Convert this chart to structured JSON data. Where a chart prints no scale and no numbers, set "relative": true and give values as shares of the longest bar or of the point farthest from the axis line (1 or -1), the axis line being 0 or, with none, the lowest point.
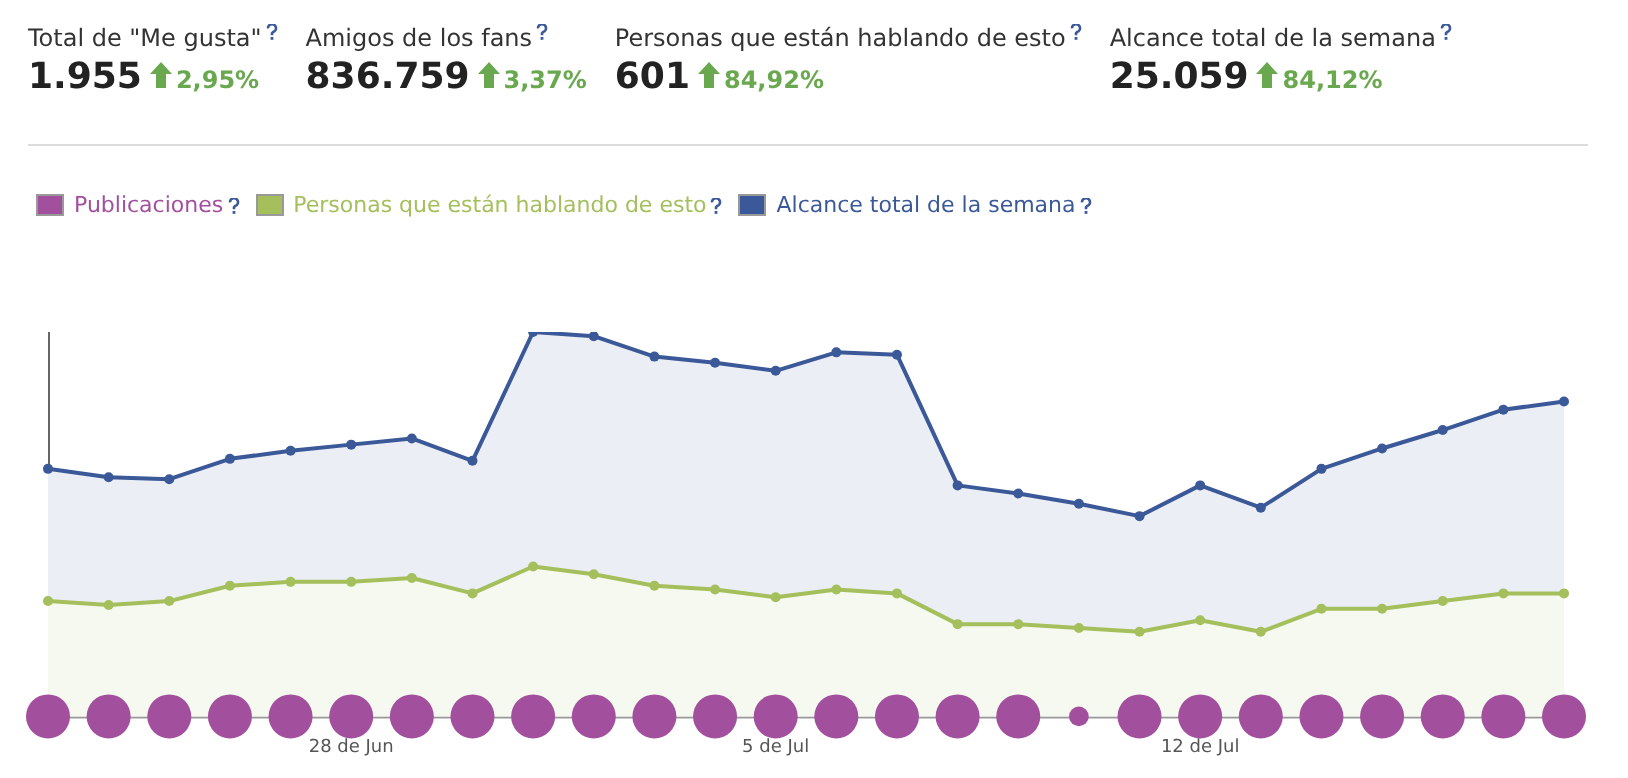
{
  "chart_data": {
    "type": "area",
    "relative": true,
    "legend": "top left",
    "marker": "circle",
    "grid": false,
    "annotations": [
      "Total de \"Me gusta\"",
      "1.955",
      "2,95%",
      "Amigos de los fans",
      "836.759",
      "3,37%",
      "Personas que están hablando de esto",
      "601",
      "84,92%",
      "Alcance total de la semana",
      "25.059",
      "84,12%"
    ],
    "categories": [
      null,
      null,
      null,
      null,
      null,
      "28 de Jun",
      null,
      null,
      null,
      null,
      null,
      null,
      "5 de Jul",
      null,
      null,
      null,
      null,
      null,
      null,
      "12 de Jul",
      null,
      null,
      null,
      null,
      null,
      null
    ],
    "series": [
      {
        "name": "Publicaciones",
        "type": "bubble",
        "color": "#a2509e",
        "values": [
          0,
          0,
          0,
          0,
          0,
          0,
          0,
          0,
          0,
          0,
          0,
          0,
          0,
          0,
          0,
          0,
          0,
          0,
          0,
          0,
          0,
          0,
          0,
          0,
          0,
          0
        ],
        "sizes": [
          1,
          1,
          1,
          1,
          1,
          1,
          1,
          1,
          1,
          1,
          1,
          1,
          1,
          1,
          1,
          1,
          1,
          0.2,
          1,
          1,
          1,
          1,
          1,
          1,
          1,
          1
        ]
      },
      {
        "name": "Personas que están hablando de esto",
        "color": "#a4bf5b",
        "values": [
          0.3,
          0.29,
          0.3,
          0.34,
          0.35,
          0.35,
          0.36,
          0.32,
          0.39,
          0.37,
          0.34,
          0.33,
          0.31,
          0.33,
          0.32,
          0.24,
          0.24,
          0.23,
          0.22,
          0.25,
          0.22,
          0.28,
          0.28,
          0.3,
          0.32,
          0.32
        ]
      },
      {
        "name": "Alcance total de la semana",
        "color": "#3b5998",
        "values": [
          0.644,
          0.622,
          0.617,
          0.67,
          0.691,
          0.707,
          0.723,
          0.665,
          1,
          0.989,
          0.936,
          0.92,
          0.899,
          0.947,
          0.941,
          0.601,
          0.58,
          0.553,
          0.521,
          0.601,
          0.543,
          0.644,
          0.697,
          0.745,
          0.798,
          0.819
        ]
      }
    ]
  }
}
